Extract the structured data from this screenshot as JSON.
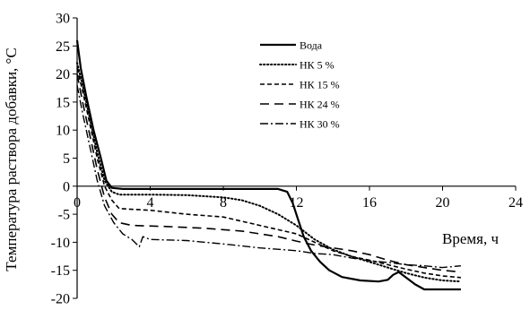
{
  "chart_data": {
    "type": "line",
    "title": "",
    "xlabel": "Время, ч",
    "ylabel": "Температура раствора добавки, °C",
    "xlim": [
      0,
      24
    ],
    "ylim": [
      -20,
      30
    ],
    "x_ticks": [
      "0",
      "4",
      "8",
      "12",
      "16",
      "20",
      "24"
    ],
    "y_ticks": [
      "-20",
      "-15",
      "-10",
      "-5",
      "0",
      "5",
      "10",
      "15",
      "20",
      "25",
      "30"
    ],
    "grid": false,
    "legend_position": "top-right",
    "series": [
      {
        "name": "Вода",
        "style": "solid",
        "points": [
          [
            0,
            26
          ],
          [
            0.2,
            21
          ],
          [
            0.5,
            16
          ],
          [
            0.9,
            10
          ],
          [
            1.3,
            5
          ],
          [
            1.6,
            1
          ],
          [
            1.9,
            -0.3
          ],
          [
            2.5,
            -0.5
          ],
          [
            4,
            -0.5
          ],
          [
            6,
            -0.5
          ],
          [
            8,
            -0.5
          ],
          [
            10,
            -0.5
          ],
          [
            11,
            -0.5
          ],
          [
            11.5,
            -1
          ],
          [
            11.8,
            -3
          ],
          [
            12.1,
            -6
          ],
          [
            12.4,
            -9
          ],
          [
            12.8,
            -11.5
          ],
          [
            13.3,
            -13.5
          ],
          [
            13.8,
            -15
          ],
          [
            14.5,
            -16.2
          ],
          [
            15.5,
            -16.8
          ],
          [
            16.5,
            -17
          ],
          [
            17,
            -16.7
          ],
          [
            17.3,
            -15.8
          ],
          [
            17.6,
            -15.3
          ],
          [
            18,
            -16.3
          ],
          [
            18.5,
            -17.5
          ],
          [
            19,
            -18.4
          ],
          [
            20,
            -18.4
          ],
          [
            21,
            -18.4
          ]
        ]
      },
      {
        "name": "НК 5 %",
        "style": "dotted",
        "points": [
          [
            0,
            22
          ],
          [
            0.3,
            18
          ],
          [
            0.7,
            12
          ],
          [
            1.1,
            6
          ],
          [
            1.5,
            1
          ],
          [
            1.9,
            -1
          ],
          [
            2.3,
            -1.5
          ],
          [
            4,
            -1.5
          ],
          [
            6,
            -1.6
          ],
          [
            8,
            -2
          ],
          [
            9,
            -2.5
          ],
          [
            10,
            -3.5
          ],
          [
            11,
            -5
          ],
          [
            12,
            -7
          ],
          [
            13,
            -9.5
          ],
          [
            14,
            -11.3
          ],
          [
            15,
            -12.5
          ],
          [
            16,
            -13.5
          ],
          [
            17,
            -14.5
          ],
          [
            18,
            -15.5
          ],
          [
            19,
            -16.3
          ],
          [
            20,
            -16.8
          ],
          [
            21,
            -17
          ]
        ]
      },
      {
        "name": "НК 15 %",
        "style": "dashed",
        "points": [
          [
            0,
            21
          ],
          [
            0.3,
            17
          ],
          [
            0.7,
            11
          ],
          [
            1.1,
            5
          ],
          [
            1.5,
            0
          ],
          [
            1.9,
            -2.5
          ],
          [
            2.3,
            -4
          ],
          [
            4,
            -4.3
          ],
          [
            6,
            -5
          ],
          [
            8,
            -5.5
          ],
          [
            10,
            -7
          ],
          [
            12,
            -8.5
          ],
          [
            13,
            -10
          ],
          [
            14,
            -11.5
          ],
          [
            15,
            -12.5
          ],
          [
            16,
            -13.2
          ],
          [
            17,
            -14
          ],
          [
            18,
            -14.8
          ],
          [
            19,
            -15.5
          ],
          [
            20,
            -16
          ],
          [
            21,
            -16.3
          ]
        ]
      },
      {
        "name": "НК 24 %",
        "style": "longdash",
        "points": [
          [
            0,
            20
          ],
          [
            0.3,
            15
          ],
          [
            0.7,
            9
          ],
          [
            1.1,
            3
          ],
          [
            1.5,
            -2
          ],
          [
            1.9,
            -5
          ],
          [
            2.3,
            -6.5
          ],
          [
            3,
            -7
          ],
          [
            5,
            -7.2
          ],
          [
            7,
            -7.5
          ],
          [
            9,
            -8
          ],
          [
            11,
            -9
          ],
          [
            12,
            -9.8
          ],
          [
            13,
            -10.5
          ],
          [
            14,
            -11
          ],
          [
            15,
            -11.5
          ],
          [
            16,
            -12.2
          ],
          [
            17,
            -13.2
          ],
          [
            18,
            -14
          ],
          [
            19,
            -14.5
          ],
          [
            20,
            -15
          ],
          [
            21,
            -15.3
          ]
        ]
      },
      {
        "name": "НК 30 %",
        "style": "dashdot",
        "points": [
          [
            0,
            18
          ],
          [
            0.3,
            13
          ],
          [
            0.7,
            7
          ],
          [
            1.1,
            1
          ],
          [
            1.5,
            -3.5
          ],
          [
            2,
            -6.5
          ],
          [
            2.5,
            -8.5
          ],
          [
            3,
            -9.5
          ],
          [
            3.4,
            -10.8
          ],
          [
            3.6,
            -9
          ],
          [
            4,
            -9.5
          ],
          [
            6,
            -9.7
          ],
          [
            8,
            -10.3
          ],
          [
            10,
            -11
          ],
          [
            12,
            -11.5
          ],
          [
            13,
            -12
          ],
          [
            14,
            -12.2
          ],
          [
            15,
            -12.8
          ],
          [
            16,
            -13.3
          ],
          [
            17,
            -13.6
          ],
          [
            18,
            -14
          ],
          [
            19,
            -14.2
          ],
          [
            20,
            -14.5
          ],
          [
            21,
            -14.2
          ]
        ]
      }
    ]
  }
}
